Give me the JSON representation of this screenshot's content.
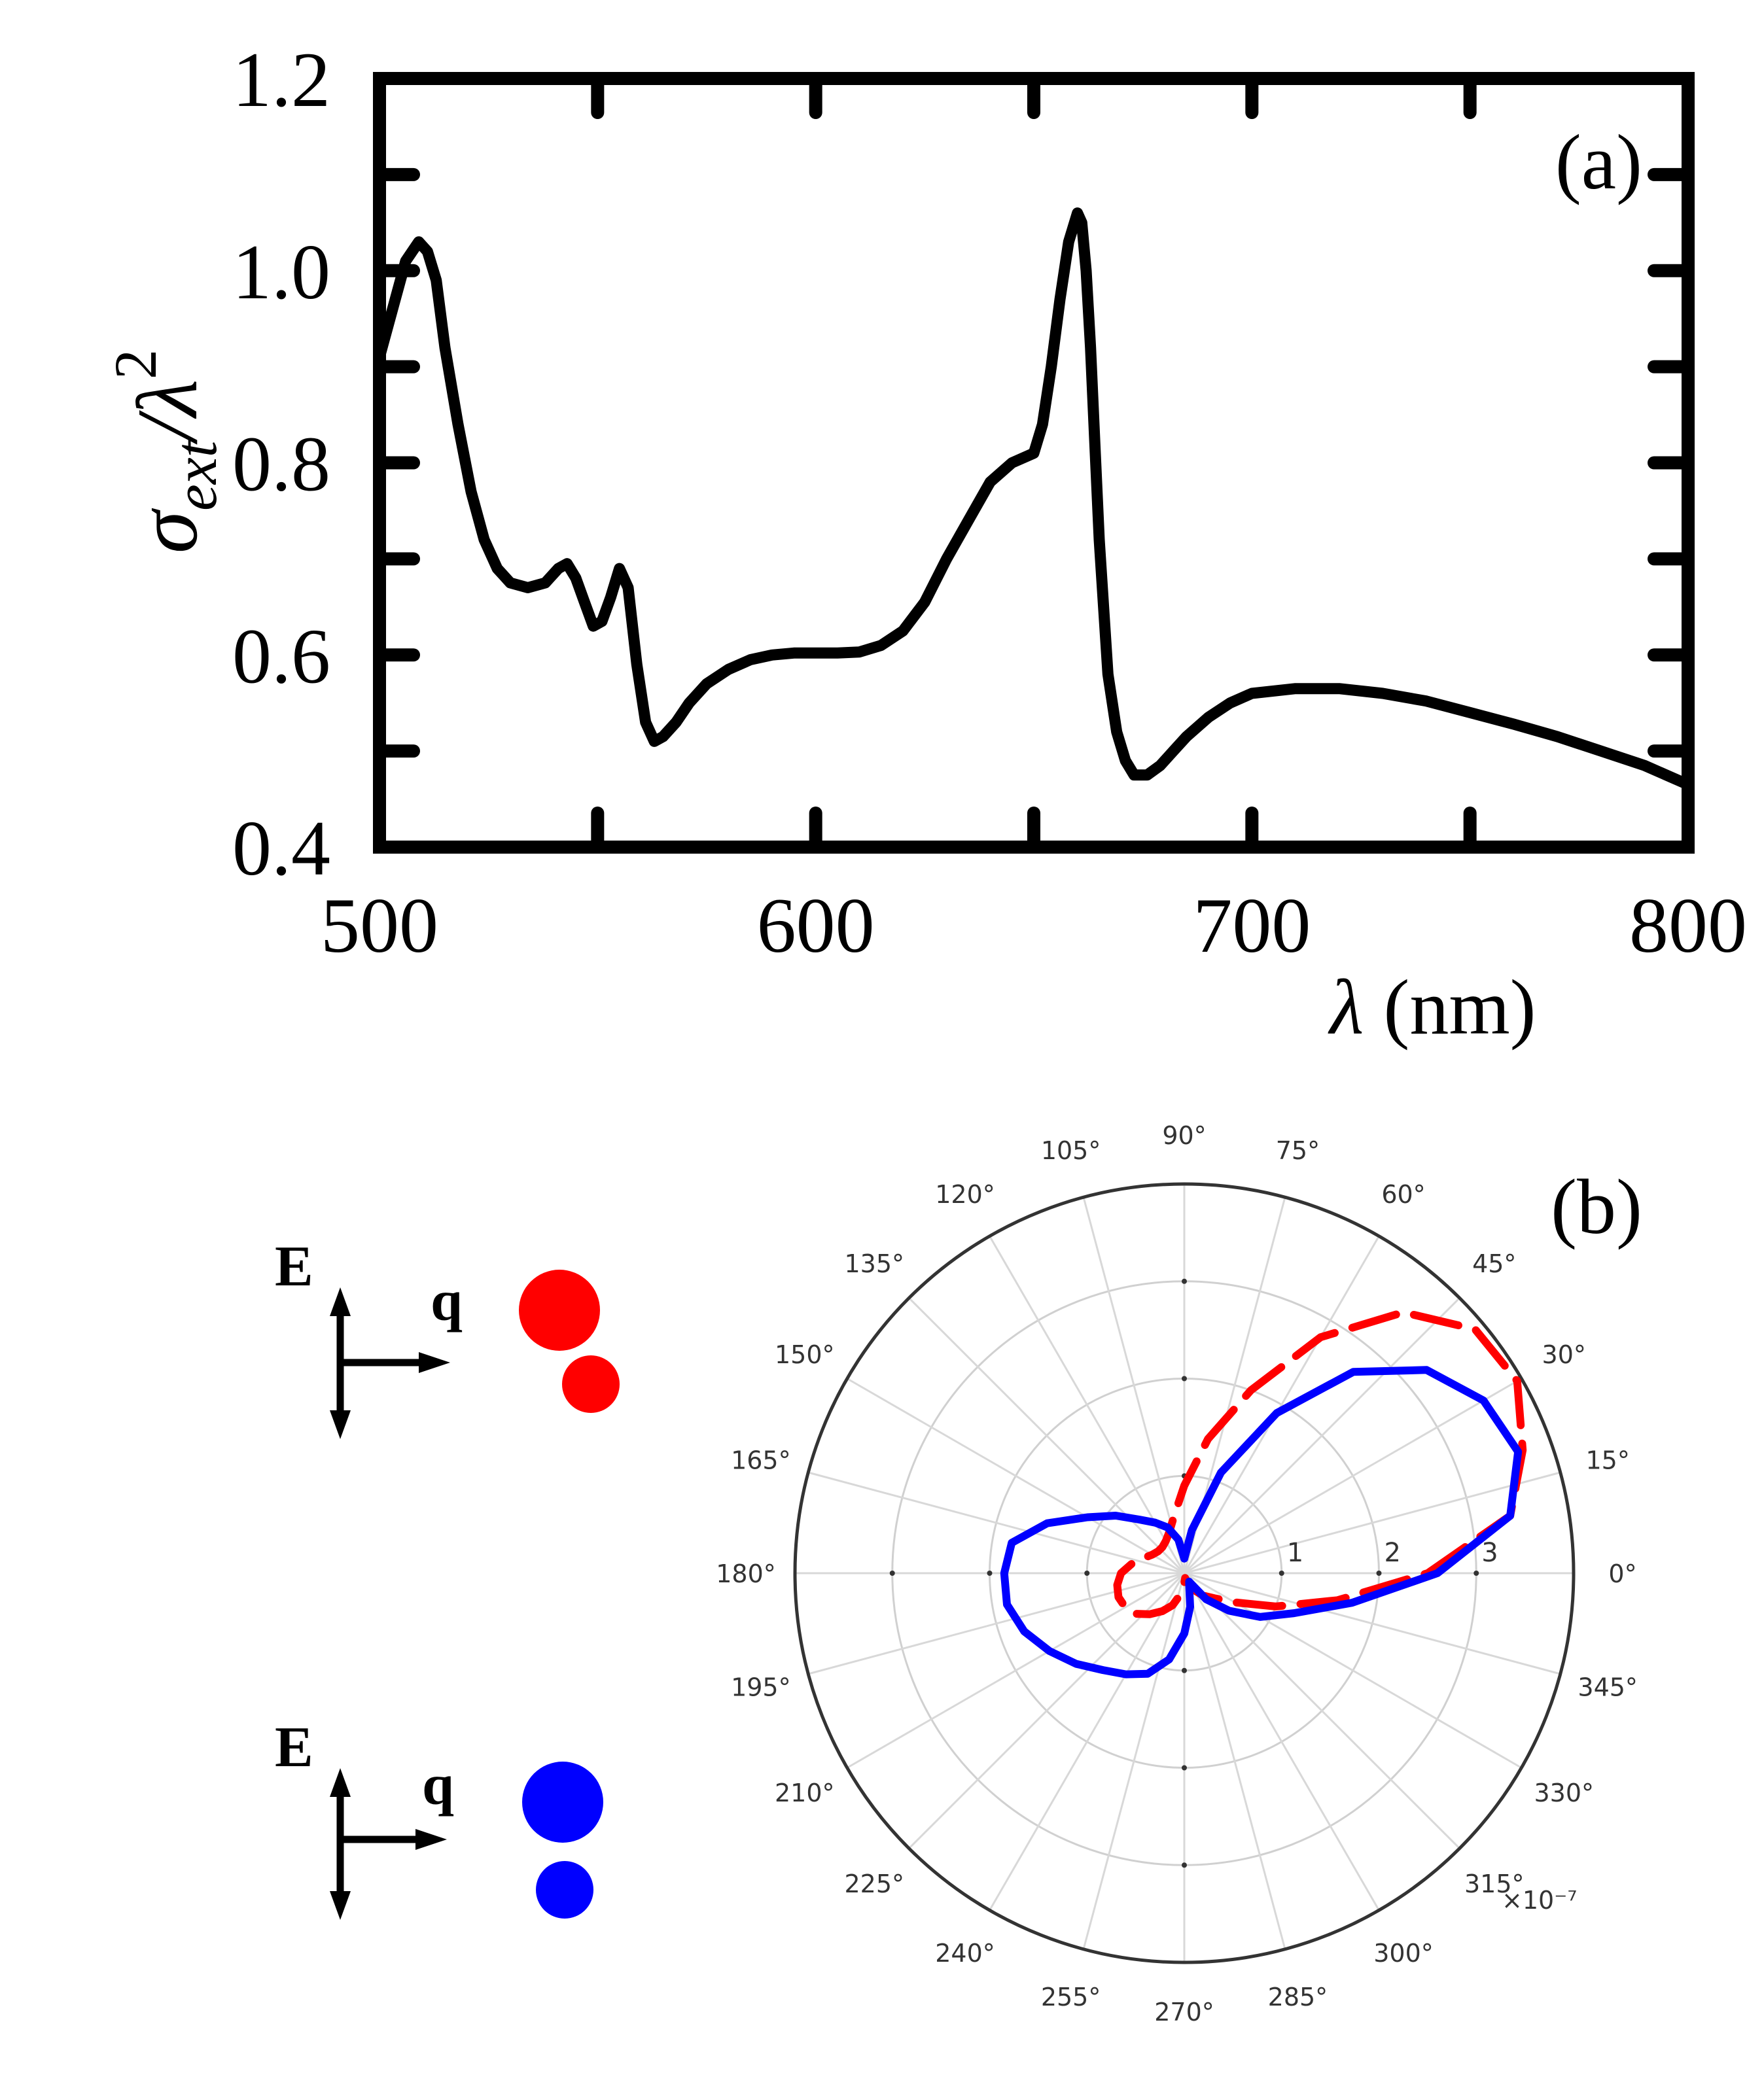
{
  "chart_data": [
    {
      "type": "line",
      "panel_label": "(a)",
      "title": "",
      "xlabel": "λ (nm)",
      "ylabel": "σ_ext/λ^2",
      "ylabel_parts": {
        "sigma": "σ",
        "subscript": "ext",
        "slash_lambda": "/λ",
        "superscript": "2"
      },
      "xlabel_parts": {
        "lambda": "λ",
        "unit": " (nm)"
      },
      "xlim": [
        500,
        800
      ],
      "ylim": [
        0.4,
        1.2
      ],
      "x_ticks": [
        "500",
        "600",
        "700",
        "800"
      ],
      "y_ticks": [
        "0.4",
        "0.6",
        "0.8",
        "1.0",
        "1.2"
      ],
      "grid": false,
      "series": [
        {
          "name": "extinction",
          "color": "#000000",
          "x": [
            500,
            503,
            506,
            509,
            511,
            513,
            515,
            518,
            521,
            524,
            527,
            530,
            534,
            538,
            541,
            543,
            545,
            547,
            549,
            551,
            553,
            555,
            557,
            559,
            561,
            563,
            565,
            568,
            571,
            575,
            580,
            585,
            590,
            595,
            600,
            605,
            610,
            615,
            620,
            625,
            630,
            635,
            640,
            645,
            650,
            652,
            654,
            656,
            658,
            660,
            661,
            662,
            663,
            664,
            665,
            667,
            669,
            671,
            673,
            676,
            679,
            682,
            685,
            690,
            695,
            700,
            710,
            720,
            730,
            740,
            750,
            760,
            770,
            780,
            790,
            800
          ],
          "y": [
            0.91,
            0.96,
            1.01,
            1.03,
            1.02,
            0.99,
            0.92,
            0.84,
            0.77,
            0.72,
            0.69,
            0.675,
            0.67,
            0.675,
            0.69,
            0.695,
            0.68,
            0.655,
            0.63,
            0.635,
            0.66,
            0.69,
            0.67,
            0.59,
            0.53,
            0.51,
            0.515,
            0.53,
            0.55,
            0.57,
            0.585,
            0.595,
            0.6,
            0.602,
            0.602,
            0.602,
            0.603,
            0.61,
            0.625,
            0.655,
            0.7,
            0.74,
            0.78,
            0.8,
            0.81,
            0.84,
            0.9,
            0.97,
            1.03,
            1.06,
            1.05,
            1.0,
            0.92,
            0.82,
            0.72,
            0.58,
            0.52,
            0.49,
            0.475,
            0.475,
            0.485,
            0.5,
            0.515,
            0.535,
            0.55,
            0.56,
            0.565,
            0.565,
            0.56,
            0.552,
            0.54,
            0.528,
            0.515,
            0.5,
            0.485,
            0.465
          ]
        }
      ]
    },
    {
      "type": "polar",
      "panel_label": "(b)",
      "title": "",
      "angle_ticks": [
        "0°",
        "15°",
        "30°",
        "45°",
        "60°",
        "75°",
        "90°",
        "105°",
        "120°",
        "135°",
        "150°",
        "165°",
        "180°",
        "195°",
        "210°",
        "225°",
        "240°",
        "255°",
        "270°",
        "285°",
        "300°",
        "315°",
        "330°",
        "345°"
      ],
      "radial_ticks": [
        "1",
        "2",
        "3"
      ],
      "rlim": [
        0,
        4
      ],
      "scale_note": "×10⁻⁷",
      "grid": true,
      "series": [
        {
          "name": "red (dashed)",
          "color": "#ff0000",
          "style": "dashed",
          "theta_deg": [
            0,
            10,
            20,
            30,
            40,
            50,
            60,
            70,
            80,
            90,
            100,
            110,
            120,
            130,
            140,
            150,
            160,
            170,
            180,
            190,
            200,
            210,
            220,
            230,
            240,
            250,
            260,
            270,
            280,
            290,
            300,
            310,
            320,
            330,
            340,
            350
          ],
          "r": [
            2.5,
            3.4,
            3.7,
            3.95,
            3.9,
            3.5,
            2.8,
            2.0,
            1.4,
            0.9,
            0.6,
            0.45,
            0.38,
            0.35,
            0.35,
            0.38,
            0.45,
            0.55,
            0.65,
            0.7,
            0.72,
            0.7,
            0.65,
            0.55,
            0.45,
            0.35,
            0.22,
            0.1,
            0.05,
            0.1,
            0.2,
            0.3,
            0.4,
            0.6,
            1.0,
            1.6
          ]
        },
        {
          "name": "blue (solid)",
          "color": "#0000ff",
          "style": "solid",
          "theta_deg": [
            0,
            10,
            20,
            30,
            40,
            50,
            60,
            70,
            80,
            90,
            100,
            110,
            120,
            130,
            140,
            150,
            160,
            170,
            180,
            190,
            200,
            210,
            220,
            230,
            240,
            250,
            260,
            270,
            280,
            290,
            300,
            310,
            320,
            330,
            340,
            350
          ],
          "r": [
            2.6,
            3.4,
            3.65,
            3.55,
            3.25,
            2.7,
            1.9,
            1.1,
            0.45,
            0.15,
            0.35,
            0.5,
            0.6,
            0.72,
            0.92,
            1.15,
            1.5,
            1.8,
            1.85,
            1.85,
            1.75,
            1.6,
            1.45,
            1.3,
            1.2,
            1.1,
            0.9,
            0.62,
            0.35,
            0.15,
            0.1,
            0.35,
            0.6,
            0.9,
            1.2,
            1.75
          ]
        }
      ]
    }
  ],
  "legend_b": {
    "red": {
      "e_label": "E",
      "q_label": "q",
      "color": "#ff0000"
    },
    "blue": {
      "e_label": "E",
      "q_label": "q",
      "color": "#0000ff"
    }
  }
}
